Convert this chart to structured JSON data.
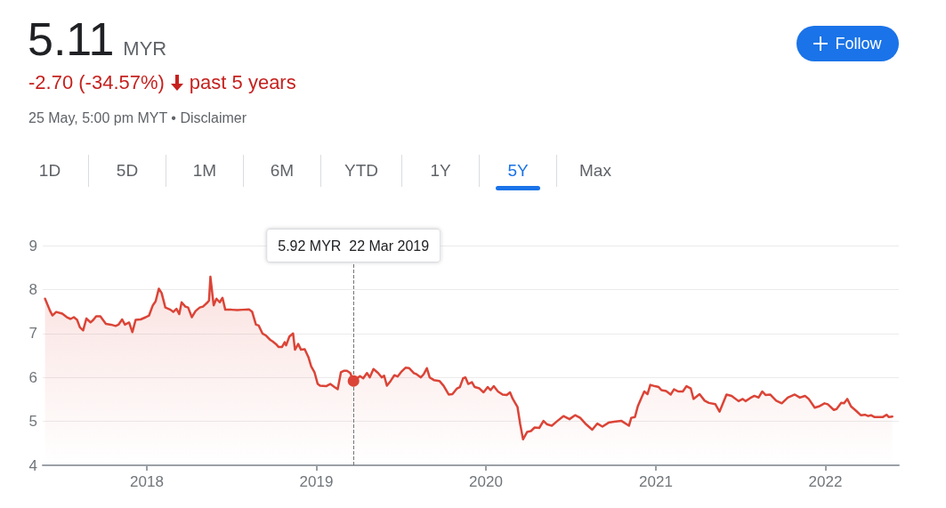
{
  "chart_data": {
    "type": "area",
    "title": "5.11",
    "subtitle": "MYR",
    "annotations": [
      "-2.70 (-34.57%)",
      "past 5 years",
      "25 May, 5:00 pm MYT • Disclaimer",
      "Follow",
      "1D",
      "5D",
      "1M",
      "6M",
      "YTD",
      "1Y",
      "5Y",
      "Max",
      "5.92 MYR  22 Mar 2019"
    ],
    "ref_lines": [
      {
        "axis": "x",
        "value": "2019-03-22",
        "color": "#757575",
        "line_style": "dashed"
      }
    ],
    "x": [
      "2017-05-27",
      "2017-06-07",
      "2017-06-12",
      "2017-06-20",
      "2017-07-03",
      "2017-07-13",
      "2017-07-21",
      "2017-07-28",
      "2017-08-04",
      "2017-08-10",
      "2017-08-17",
      "2017-08-24",
      "2017-09-02",
      "2017-09-08",
      "2017-09-14",
      "2017-09-23",
      "2017-10-05",
      "2017-10-16",
      "2017-10-26",
      "2017-11-01",
      "2017-11-09",
      "2017-11-15",
      "2017-11-24",
      "2017-12-01",
      "2017-12-08",
      "2017-12-19",
      "2017-12-30",
      "2018-01-06",
      "2018-01-14",
      "2018-01-20",
      "2018-01-27",
      "2018-02-02",
      "2018-02-10",
      "2018-02-21",
      "2018-02-27",
      "2018-03-06",
      "2018-03-12",
      "2018-03-17",
      "2018-03-25",
      "2018-03-31",
      "2018-04-08",
      "2018-04-16",
      "2018-04-25",
      "2018-05-02",
      "2018-05-12",
      "2018-05-15",
      "2018-05-18",
      "2018-05-25",
      "2018-05-31",
      "2018-06-07",
      "2018-06-13",
      "2018-06-19",
      "2018-07-02",
      "2018-07-15",
      "2018-07-27",
      "2018-08-09",
      "2018-08-16",
      "2018-08-24",
      "2018-08-30",
      "2018-09-07",
      "2018-09-15",
      "2018-09-23",
      "2018-09-29",
      "2018-10-06",
      "2018-10-12",
      "2018-10-19",
      "2018-10-25",
      "2018-10-28",
      "2018-11-04",
      "2018-11-12",
      "2018-11-16",
      "2018-11-23",
      "2018-11-29",
      "2018-12-07",
      "2018-12-15",
      "2018-12-21",
      "2018-12-28",
      "2019-01-04",
      "2019-01-09",
      "2019-01-22",
      "2019-01-31",
      "2019-02-09",
      "2019-02-16",
      "2019-02-23",
      "2019-03-01",
      "2019-03-08",
      "2019-03-15",
      "2019-03-22",
      "2019-03-30",
      "2019-04-05",
      "2019-04-12",
      "2019-04-20",
      "2019-04-26",
      "2019-05-04",
      "2019-05-14",
      "2019-05-22",
      "2019-05-27",
      "2019-06-02",
      "2019-06-10",
      "2019-06-18",
      "2019-06-25",
      "2019-07-04",
      "2019-07-12",
      "2019-07-20",
      "2019-07-30",
      "2019-08-05",
      "2019-08-14",
      "2019-08-20",
      "2019-08-27",
      "2019-09-02",
      "2019-09-11",
      "2019-09-23",
      "2019-10-02",
      "2019-10-13",
      "2019-10-21",
      "2019-10-31",
      "2019-11-06",
      "2019-11-13",
      "2019-11-18",
      "2019-11-24",
      "2019-12-02",
      "2019-12-08",
      "2019-12-18",
      "2019-12-27",
      "2020-01-05",
      "2020-01-11",
      "2020-01-18",
      "2020-01-27",
      "2020-02-06",
      "2020-02-15",
      "2020-02-22",
      "2020-02-28",
      "2020-03-09",
      "2020-03-15",
      "2020-03-21",
      "2020-03-30",
      "2020-04-07",
      "2020-04-15",
      "2020-04-25",
      "2020-05-04",
      "2020-05-12",
      "2020-05-22",
      "2020-06-03",
      "2020-06-16",
      "2020-06-29",
      "2020-07-11",
      "2020-07-22",
      "2020-08-04",
      "2020-08-17",
      "2020-08-28",
      "2020-09-08",
      "2020-09-21",
      "2020-10-03",
      "2020-10-19",
      "2020-11-04",
      "2020-11-09",
      "2020-11-17",
      "2020-11-23",
      "2020-12-01",
      "2020-12-07",
      "2020-12-14",
      "2020-12-20",
      "2020-12-30",
      "2021-01-07",
      "2021-01-13",
      "2021-01-23",
      "2021-02-02",
      "2021-02-09",
      "2021-02-18",
      "2021-02-28",
      "2021-03-08",
      "2021-03-17",
      "2021-03-23",
      "2021-04-05",
      "2021-04-16",
      "2021-04-25",
      "2021-05-09",
      "2021-05-18",
      "2021-06-02",
      "2021-06-13",
      "2021-06-28",
      "2021-07-07",
      "2021-07-13",
      "2021-07-23",
      "2021-08-01",
      "2021-08-10",
      "2021-08-18",
      "2021-08-25",
      "2021-09-04",
      "2021-09-17",
      "2021-09-29",
      "2021-10-12",
      "2021-10-27",
      "2021-11-07",
      "2021-11-18",
      "2021-11-26",
      "2021-12-09",
      "2021-12-18",
      "2021-12-30",
      "2022-01-06",
      "2022-01-19",
      "2022-01-25",
      "2022-02-04",
      "2022-02-10",
      "2022-02-17",
      "2022-02-25",
      "2022-03-08",
      "2022-03-18",
      "2022-03-27",
      "2022-04-03",
      "2022-04-09",
      "2022-04-16",
      "2022-04-25",
      "2022-05-05",
      "2022-05-13",
      "2022-05-17",
      "2022-05-25"
    ],
    "series": [
      {
        "color": "#db4437",
        "values": [
          7.79,
          7.51,
          7.41,
          7.49,
          7.45,
          7.37,
          7.33,
          7.37,
          7.31,
          7.14,
          7.07,
          7.34,
          7.25,
          7.31,
          7.39,
          7.39,
          7.22,
          7.2,
          7.17,
          7.2,
          7.32,
          7.2,
          7.25,
          7.03,
          7.31,
          7.32,
          7.37,
          7.41,
          7.64,
          7.73,
          8.02,
          7.92,
          7.59,
          7.54,
          7.49,
          7.56,
          7.44,
          7.71,
          7.61,
          7.59,
          7.37,
          7.51,
          7.59,
          7.61,
          7.71,
          7.75,
          8.29,
          7.64,
          7.79,
          7.71,
          7.81,
          7.54,
          7.54,
          7.53,
          7.54,
          7.55,
          7.49,
          7.2,
          7.18,
          7.0,
          6.95,
          6.86,
          6.82,
          6.76,
          6.69,
          6.69,
          6.8,
          6.73,
          6.93,
          7.0,
          6.63,
          6.76,
          6.63,
          6.64,
          6.46,
          6.25,
          6.12,
          5.85,
          5.81,
          5.8,
          5.85,
          5.78,
          5.73,
          6.12,
          6.15,
          6.15,
          6.1,
          5.92,
          5.98,
          6.03,
          5.98,
          6.1,
          6.0,
          6.19,
          6.1,
          6.0,
          6.04,
          5.81,
          5.92,
          6.05,
          6.02,
          6.14,
          6.22,
          6.21,
          6.1,
          6.07,
          6.0,
          6.07,
          6.21,
          6.0,
          5.94,
          5.92,
          5.81,
          5.61,
          5.62,
          5.75,
          5.78,
          5.98,
          6.0,
          5.85,
          5.89,
          5.78,
          5.75,
          5.66,
          5.78,
          5.71,
          5.8,
          5.68,
          5.61,
          5.6,
          5.66,
          5.51,
          5.33,
          4.93,
          4.59,
          4.76,
          4.78,
          4.86,
          4.85,
          5.01,
          4.93,
          4.9,
          5.01,
          5.12,
          5.05,
          5.14,
          5.08,
          4.93,
          4.81,
          4.95,
          4.88,
          4.97,
          4.99,
          5.01,
          4.9,
          5.08,
          5.1,
          5.34,
          5.54,
          5.68,
          5.62,
          5.83,
          5.8,
          5.78,
          5.71,
          5.69,
          5.61,
          5.73,
          5.68,
          5.68,
          5.8,
          5.75,
          5.51,
          5.62,
          5.47,
          5.42,
          5.39,
          5.22,
          5.61,
          5.58,
          5.46,
          5.51,
          5.46,
          5.53,
          5.58,
          5.54,
          5.68,
          5.6,
          5.61,
          5.47,
          5.41,
          5.54,
          5.61,
          5.54,
          5.58,
          5.51,
          5.31,
          5.34,
          5.41,
          5.39,
          5.26,
          5.28,
          5.42,
          5.41,
          5.51,
          5.34,
          5.24,
          5.14,
          5.15,
          5.12,
          5.14,
          5.1,
          5.1,
          5.1,
          5.15,
          5.1,
          5.11
        ]
      }
    ],
    "xlim": [
      "2017-05-22",
      "2022-06-08"
    ],
    "xticks": [
      "2018",
      "2019",
      "2020",
      "2021",
      "2022"
    ],
    "ylim": [
      4,
      9
    ],
    "yticks": [
      4,
      5,
      6,
      7,
      8,
      9
    ],
    "grid": "y",
    "marker": "none",
    "line_style": "solid"
  }
}
